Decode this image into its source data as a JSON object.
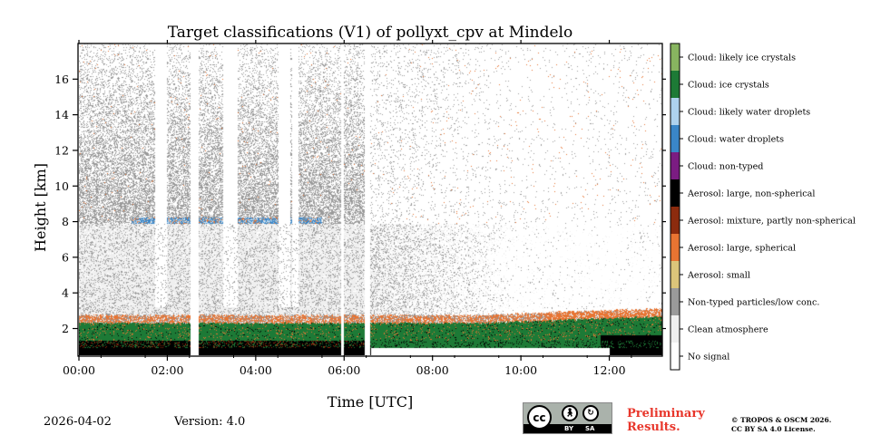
{
  "chart_data": {
    "type": "heatmap",
    "title": "Target classifications (V1) of pollyxt_cpv at Mindelo",
    "xlabel": "Time [UTC]",
    "ylabel": "Height [km]",
    "xlim_hours": [
      0,
      13.2
    ],
    "ylim_km": [
      0.5,
      18.0
    ],
    "x_ticks": [
      {
        "value": 0,
        "label": "00:00"
      },
      {
        "value": 2,
        "label": "02:00"
      },
      {
        "value": 4,
        "label": "04:00"
      },
      {
        "value": 6,
        "label": "06:00"
      },
      {
        "value": 8,
        "label": "08:00"
      },
      {
        "value": 10,
        "label": "10:00"
      },
      {
        "value": 12,
        "label": "12:00"
      }
    ],
    "y_ticks": [
      {
        "value": 2,
        "label": "2"
      },
      {
        "value": 4,
        "label": "4"
      },
      {
        "value": 6,
        "label": "6"
      },
      {
        "value": 8,
        "label": "8"
      },
      {
        "value": 10,
        "label": "10"
      },
      {
        "value": 12,
        "label": "12"
      },
      {
        "value": 14,
        "label": "14"
      },
      {
        "value": 16,
        "label": "16"
      }
    ],
    "classes": [
      {
        "label": "No signal",
        "color": "#ffffff"
      },
      {
        "label": "Clean atmosphere",
        "color": "#efefef"
      },
      {
        "label": "Non-typed particles/low conc.",
        "color": "#9a9a9a"
      },
      {
        "label": "Aerosol: small",
        "color": "#dcc57a"
      },
      {
        "label": "Aerosol: large, spherical",
        "color": "#e87432"
      },
      {
        "label": "Aerosol: mixture, partly non-spherical",
        "color": "#8c2b0e"
      },
      {
        "label": "Aerosol: large, non-spherical",
        "color": "#000000"
      },
      {
        "label": "Cloud: non-typed",
        "color": "#7b1c82"
      },
      {
        "label": "Cloud: water droplets",
        "color": "#3a86c8"
      },
      {
        "label": "Cloud: likely water droplets",
        "color": "#aed2ee"
      },
      {
        "label": "Cloud: ice crystals",
        "color": "#1d7a36"
      },
      {
        "label": "Cloud: likely ice crystals",
        "color": "#88b560"
      }
    ],
    "data_gaps_hours": [
      [
        1.72,
        2.0
      ],
      [
        2.52,
        2.72
      ],
      [
        3.26,
        3.6
      ],
      [
        4.22,
        4.37
      ],
      [
        4.52,
        4.78
      ],
      [
        4.83,
        4.97
      ],
      [
        5.93,
        6.0
      ],
      [
        6.47,
        6.6
      ]
    ],
    "cloud_layer_km": [
      7.9,
      8.2
    ],
    "boundary_layer_top_km": [
      2.4,
      2.9
    ]
  },
  "footer": {
    "date": "2026-04-02",
    "version": "Version: 4.0",
    "preliminary_line1": "Preliminary",
    "preliminary_line2": "Results.",
    "copyright_line1": "© TROPOS & OSCM 2026.",
    "copyright_line2": "CC BY SA 4.0 License.",
    "cc": "cc",
    "cc_by": "BY",
    "cc_sa": "SA"
  }
}
